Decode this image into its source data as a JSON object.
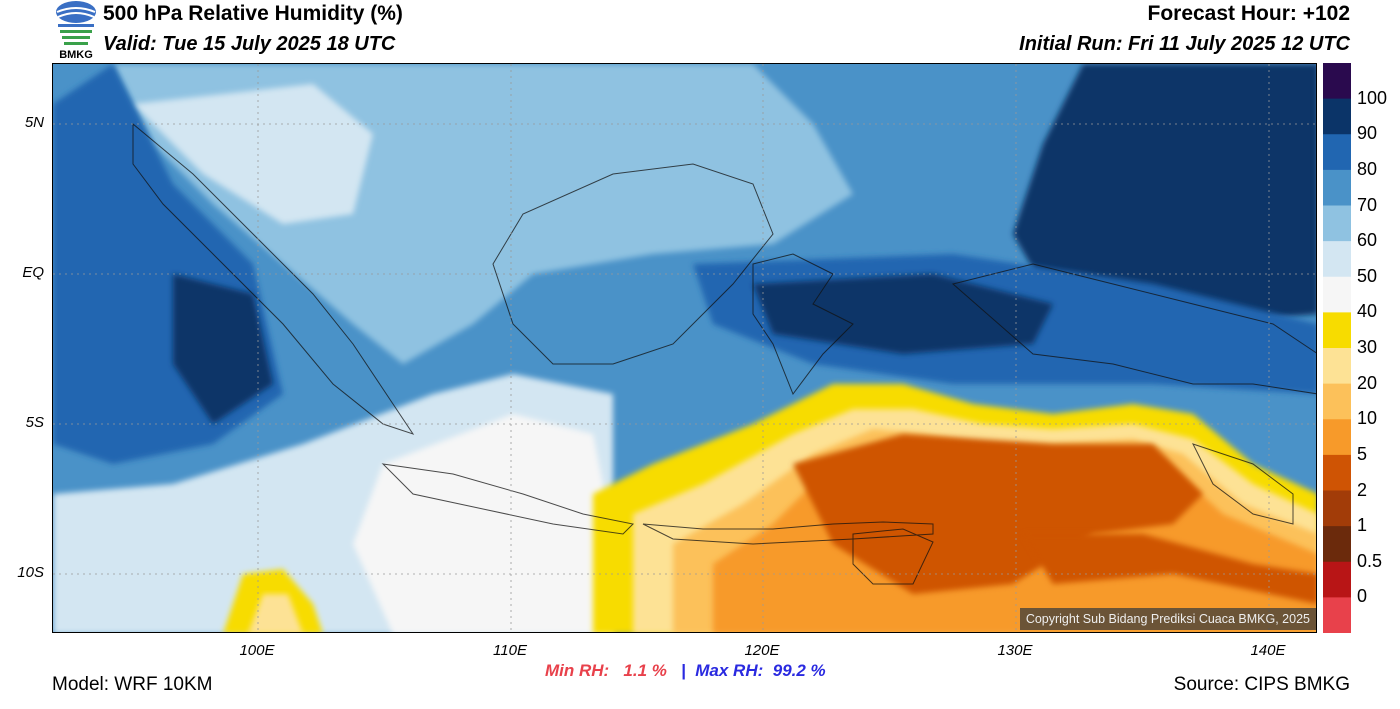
{
  "header": {
    "title": "500 hPa Relative Humidity (%)",
    "valid": "Valid: Tue 15 July 2025 18 UTC",
    "forecast_hour": "Forecast Hour: +102",
    "initial_run": "Initial Run: Fri 11 July 2025 12 UTC",
    "logo_text": "BMKG"
  },
  "axes": {
    "lat_labels": [
      "5N",
      "EQ",
      "5S",
      "10S"
    ],
    "lon_labels": [
      "100E",
      "110E",
      "120E",
      "130E",
      "140E"
    ]
  },
  "stats": {
    "min_label": "Min RH:",
    "min_value": "1.1 %",
    "separator": "|",
    "max_label": "Max RH:",
    "max_value": "99.2 %"
  },
  "footer": {
    "model": "Model: WRF 10KM",
    "source": "Source: CIPS BMKG",
    "copyright": "Copyright Sub Bidang Prediksi Cuaca BMKG, 2025"
  },
  "colorbar": {
    "labels": [
      "100",
      "90",
      "80",
      "70",
      "60",
      "50",
      "40",
      "30",
      "20",
      "10",
      "5",
      "2",
      "1",
      "0.5",
      "0"
    ],
    "colors": [
      "#2a0a4e",
      "#0b3468",
      "#2166b1",
      "#4a92c8",
      "#8fc2e1",
      "#d3e6f2",
      "#f6f6f6",
      "#f7dc00",
      "#fde295",
      "#fcc15a",
      "#f79a2a",
      "#cf5404",
      "#a23c08",
      "#6b2a0c",
      "#b81516",
      "#e8414b"
    ]
  }
}
